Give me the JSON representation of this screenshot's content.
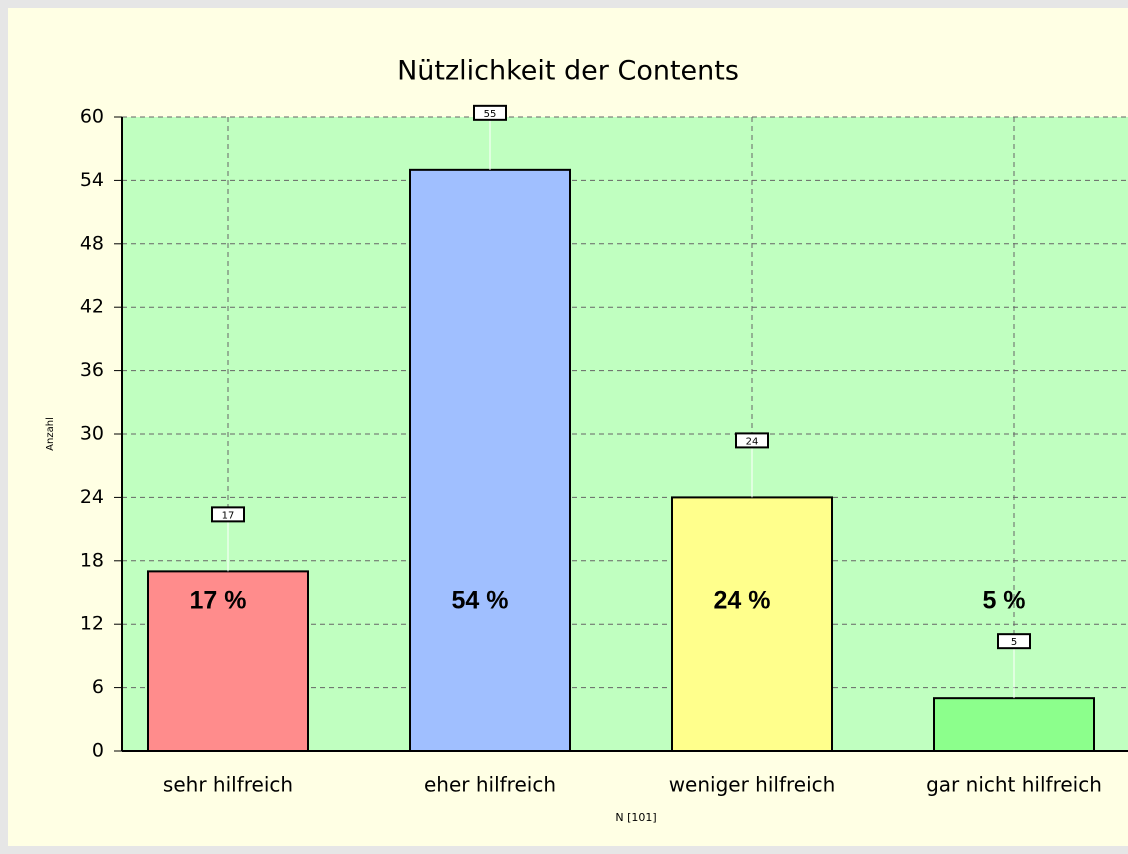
{
  "chart_data": {
    "type": "bar",
    "title": "Nützlichkeit der Contents",
    "y_label": "Anzahl",
    "x_label": "N [101]",
    "categories": [
      "sehr hilfreich",
      "eher hilfreich",
      "weniger hilfreich",
      "gar nicht hilfreich"
    ],
    "values": [
      17,
      55,
      24,
      5
    ],
    "percentages": [
      17,
      54,
      24,
      5
    ],
    "percentage_labels": [
      "17 %",
      "54 %",
      "24 %",
      "5 %"
    ],
    "colors": [
      "#ff8c8c",
      "#a0bfff",
      "#ffff8c",
      "#8cff8c"
    ],
    "ylim": [
      0,
      60
    ],
    "yticks": [
      0,
      6,
      12,
      18,
      24,
      30,
      36,
      42,
      48,
      54,
      60
    ],
    "grid": true
  }
}
